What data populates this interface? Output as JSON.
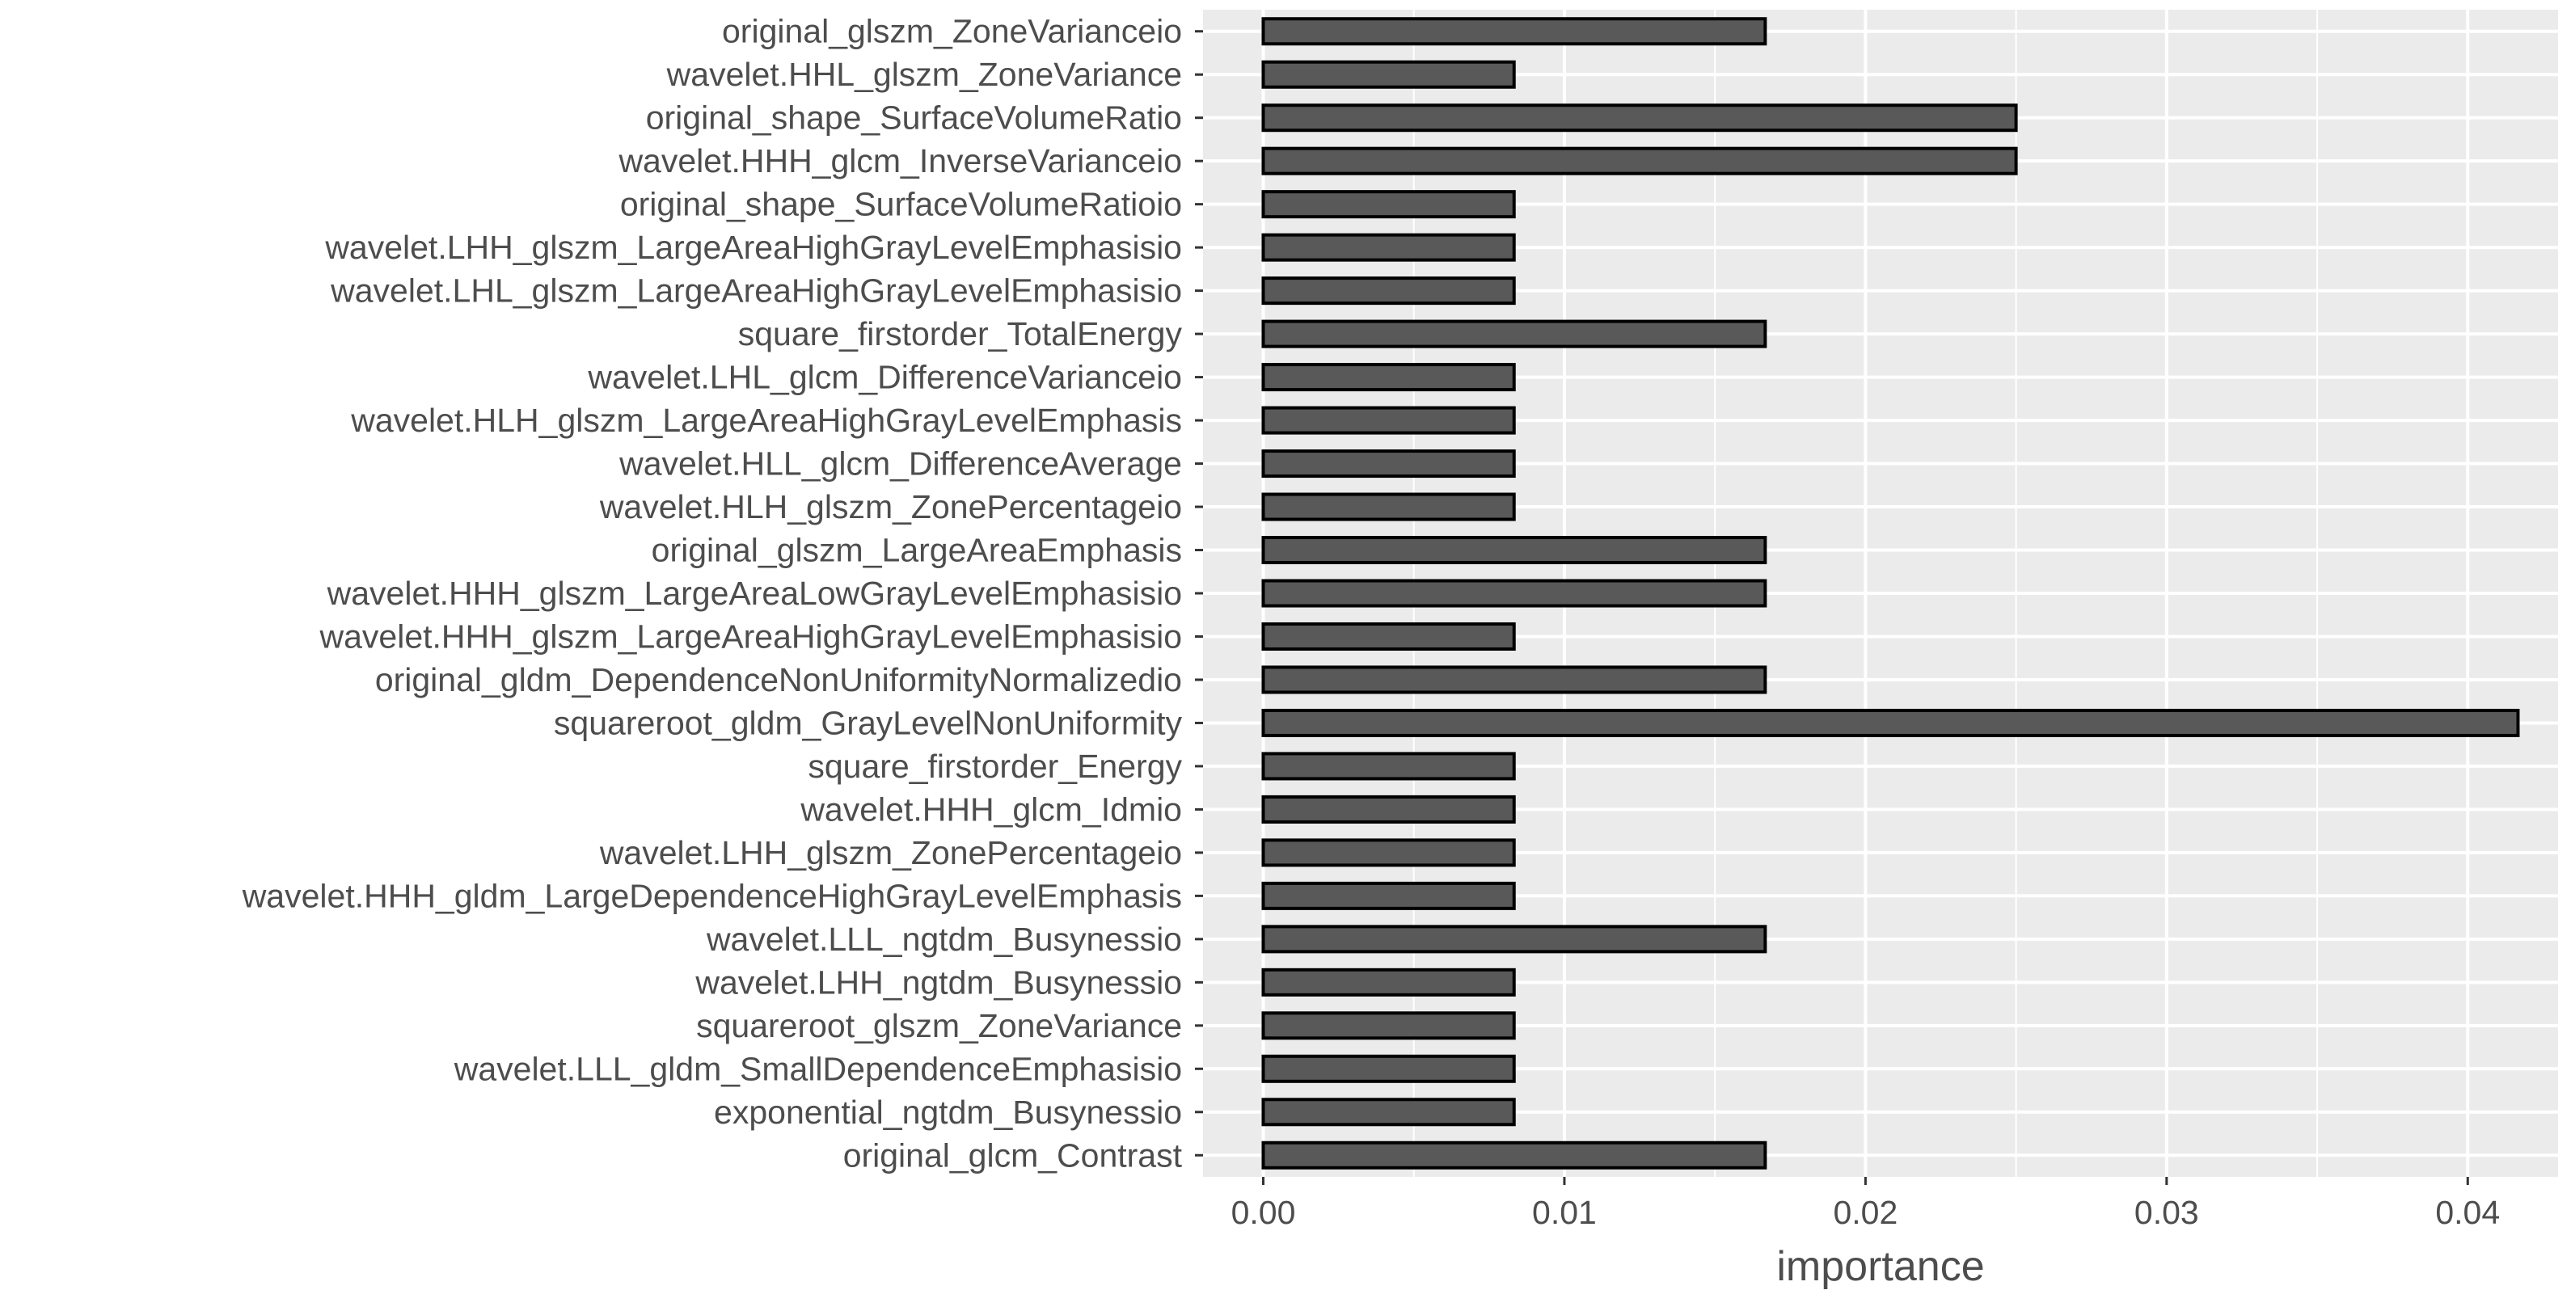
{
  "chart_data": {
    "type": "bar",
    "orientation": "horizontal",
    "xlabel": "importance",
    "ylabel": "",
    "title": "",
    "xlim": [
      -0.002,
      0.043
    ],
    "xticks": [
      0.0,
      0.01,
      0.02,
      0.03,
      0.04
    ],
    "xtick_labels": [
      "0.00",
      "0.01",
      "0.02",
      "0.03",
      "0.04"
    ],
    "grid": true,
    "legend": "none",
    "colors": {
      "panel_background": "#ebebeb",
      "gridline": "#ffffff",
      "bar_fill": "#595959",
      "bar_outline": "#000000",
      "text": "#4d4d4d"
    },
    "categories": [
      "original_glszm_ZoneVarianceio",
      "wavelet.HHL_glszm_ZoneVariance",
      "original_shape_SurfaceVolumeRatio",
      "wavelet.HHH_glcm_InverseVarianceio",
      "original_shape_SurfaceVolumeRatioio",
      "wavelet.LHH_glszm_LargeAreaHighGrayLevelEmphasisio",
      "wavelet.LHL_glszm_LargeAreaHighGrayLevelEmphasisio",
      "square_firstorder_TotalEnergy",
      "wavelet.LHL_glcm_DifferenceVarianceio",
      "wavelet.HLH_glszm_LargeAreaHighGrayLevelEmphasis",
      "wavelet.HLL_glcm_DifferenceAverage",
      "wavelet.HLH_glszm_ZonePercentageio",
      "original_glszm_LargeAreaEmphasis",
      "wavelet.HHH_glszm_LargeAreaLowGrayLevelEmphasisio",
      "wavelet.HHH_glszm_LargeAreaHighGrayLevelEmphasisio",
      "original_gldm_DependenceNonUniformityNormalizedio",
      "squareroot_gldm_GrayLevelNonUniformity",
      "square_firstorder_Energy",
      "wavelet.HHH_glcm_Idmio",
      "wavelet.LHH_glszm_ZonePercentageio",
      "wavelet.HHH_gldm_LargeDependenceHighGrayLevelEmphasis",
      "wavelet.LLL_ngtdm_Busynessio",
      "wavelet.LHH_ngtdm_Busynessio",
      "squareroot_glszm_ZoneVariance",
      "wavelet.LLL_gldm_SmallDependenceEmphasisio",
      "exponential_ngtdm_Busynessio",
      "original_glcm_Contrast"
    ],
    "values": [
      0.01667,
      0.00833,
      0.025,
      0.025,
      0.00833,
      0.00833,
      0.00833,
      0.01667,
      0.00833,
      0.00833,
      0.00833,
      0.00833,
      0.01667,
      0.01667,
      0.00833,
      0.01667,
      0.04167,
      0.00833,
      0.00833,
      0.00833,
      0.00833,
      0.01667,
      0.00833,
      0.00833,
      0.00833,
      0.00833,
      0.01667
    ]
  }
}
